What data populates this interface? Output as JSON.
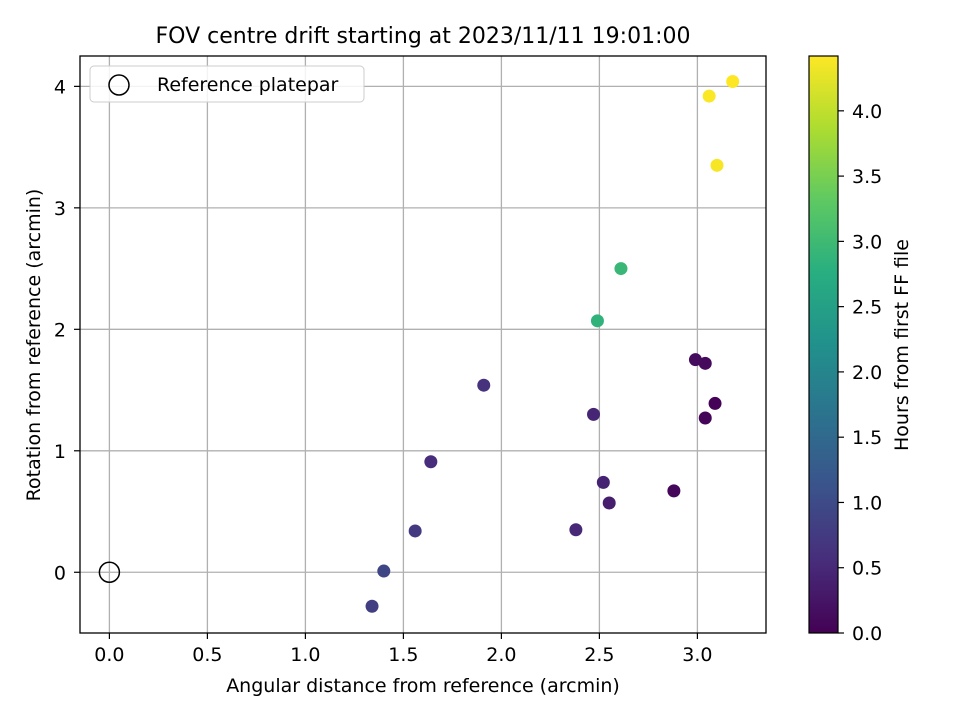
{
  "chart_data": {
    "type": "scatter",
    "title": "FOV centre drift starting at 2023/11/11 19:01:00",
    "xlabel": "Angular distance from reference (arcmin)",
    "ylabel": "Rotation from reference (arcmin)",
    "xlim": [
      -0.15,
      3.35
    ],
    "ylim": [
      -0.5,
      4.25
    ],
    "xticks": [
      "0.0",
      "0.5",
      "1.0",
      "1.5",
      "2.0",
      "2.5",
      "3.0"
    ],
    "yticks": [
      "0",
      "1",
      "2",
      "3",
      "4"
    ],
    "grid": true,
    "legend": {
      "placement": "top-left",
      "entries": [
        "Reference platepar"
      ]
    },
    "reference_point": {
      "name": "Reference platepar",
      "x": 0.0,
      "y": 0.0
    },
    "colorbar": {
      "label": "Hours from first FF file",
      "min": 0.0,
      "max": 4.42,
      "colormap": "viridis",
      "ticks": [
        "0.0",
        "0.5",
        "1.0",
        "1.5",
        "2.0",
        "2.5",
        "3.0",
        "3.5",
        "4.0"
      ]
    },
    "points": [
      {
        "x": 3.09,
        "y": 1.39,
        "hours": 0.03
      },
      {
        "x": 3.04,
        "y": 1.27,
        "hours": 0.05
      },
      {
        "x": 2.88,
        "y": 0.67,
        "hours": 0.08
      },
      {
        "x": 3.04,
        "y": 1.72,
        "hours": 0.11
      },
      {
        "x": 2.99,
        "y": 1.75,
        "hours": 0.14
      },
      {
        "x": 2.55,
        "y": 0.57,
        "hours": 0.36
      },
      {
        "x": 2.52,
        "y": 0.74,
        "hours": 0.42
      },
      {
        "x": 2.47,
        "y": 1.3,
        "hours": 0.46
      },
      {
        "x": 2.38,
        "y": 0.35,
        "hours": 0.5
      },
      {
        "x": 1.64,
        "y": 0.91,
        "hours": 0.55
      },
      {
        "x": 1.91,
        "y": 1.54,
        "hours": 0.62
      },
      {
        "x": 1.56,
        "y": 0.34,
        "hours": 0.75
      },
      {
        "x": 1.34,
        "y": -0.28,
        "hours": 0.8
      },
      {
        "x": 1.4,
        "y": 0.01,
        "hours": 0.93
      },
      {
        "x": 2.49,
        "y": 2.07,
        "hours": 2.85
      },
      {
        "x": 2.61,
        "y": 2.5,
        "hours": 2.95
      },
      {
        "x": 3.1,
        "y": 3.35,
        "hours": 4.38
      },
      {
        "x": 3.06,
        "y": 3.92,
        "hours": 4.4
      },
      {
        "x": 3.18,
        "y": 4.04,
        "hours": 4.42
      }
    ]
  }
}
